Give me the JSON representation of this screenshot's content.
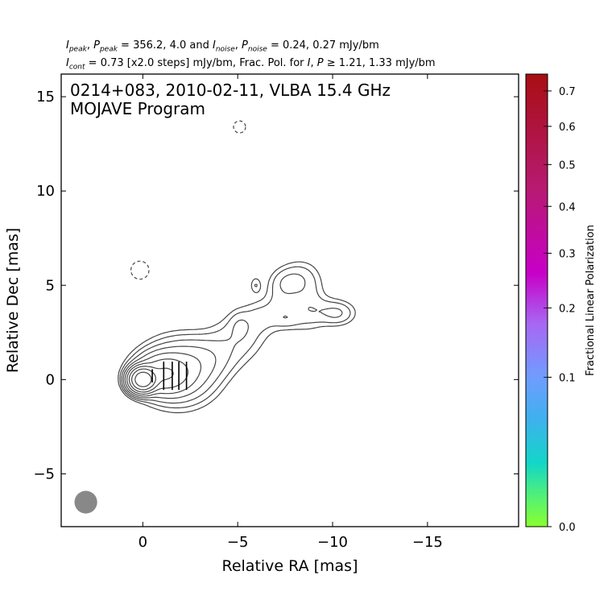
{
  "header": {
    "line1": {
      "ipeak_sym": "I",
      "ipeak_sub": "peak",
      "ppeak_sym": "P",
      "ppeak_sub": "peak",
      "peak_values": "356.2, 4.0",
      "inoise_sym": "I",
      "inoise_sub": "noise",
      "pnoise_sym": "P",
      "pnoise_sub": "noise",
      "noise_values": "0.24, 0.27 mJy/bm"
    },
    "line2": {
      "icont_sym": "I",
      "icont_sub": "cont",
      "cont_text": "= 0.73 [x2.0 steps] mJy/bm, Frac. Pol. for",
      "i_sym": "I",
      "p_sym": "P",
      "frac_text": "≥ 1.21, 1.33 mJy/bm"
    }
  },
  "chart_data": {
    "type": "contour",
    "title": "0214+083, 2010-02-11, VLBA 15.4 GHz",
    "subtitle": "MOJAVE Program",
    "xlabel": "Relative RA [mas]",
    "ylabel": "Relative Dec [mas]",
    "xlim": [
      4.3,
      -19.8
    ],
    "ylim": [
      -7.8,
      16.2
    ],
    "xticks": [
      0,
      -5,
      -10,
      -15
    ],
    "xtick_labels": [
      "0",
      "−5",
      "−10",
      "−15"
    ],
    "yticks": [
      -5,
      0,
      5,
      10,
      15
    ],
    "ytick_labels": [
      "−5",
      "0",
      "5",
      "10",
      "15"
    ],
    "contour_levels_mJy": [
      0.73,
      1.46,
      2.92,
      5.84,
      11.68,
      23.36,
      46.72,
      93.44,
      186.88
    ],
    "core": [
      0.0,
      0.0
    ],
    "negative_contours": [
      {
        "center": [
          -5.1,
          13.4
        ],
        "rx": 0.2,
        "ry": 0.32
      },
      {
        "center": [
          0.15,
          5.8
        ],
        "rx": 0.38,
        "ry": 0.48
      }
    ],
    "pol_region": {
      "points": [
        [
          0.1,
          0.05,
          0.02
        ],
        [
          -0.6,
          0.15,
          0.06
        ],
        [
          -1.3,
          0.25,
          0.09
        ],
        [
          -1.8,
          0.3,
          0.13
        ],
        [
          -2.3,
          0.28,
          0.2
        ]
      ]
    },
    "evpa_ticks_x": [
      -0.5,
      -1.1,
      -1.55,
      -1.9,
      -2.3
    ],
    "beam": {
      "center": [
        3.0,
        -6.5
      ],
      "major": 1.2,
      "minor": 0.6
    },
    "colorbar": {
      "label": "Fractional Linear Polarization",
      "range": [
        0.0,
        0.75
      ],
      "tick_values": [
        0.0,
        0.1,
        0.2,
        0.3,
        0.4,
        0.5,
        0.6,
        0.7
      ],
      "tick_labels": [
        "0.0",
        "0.1",
        "0.2",
        "0.3",
        "0.4",
        "0.5",
        "0.6",
        "0.7"
      ]
    },
    "grid": false
  }
}
